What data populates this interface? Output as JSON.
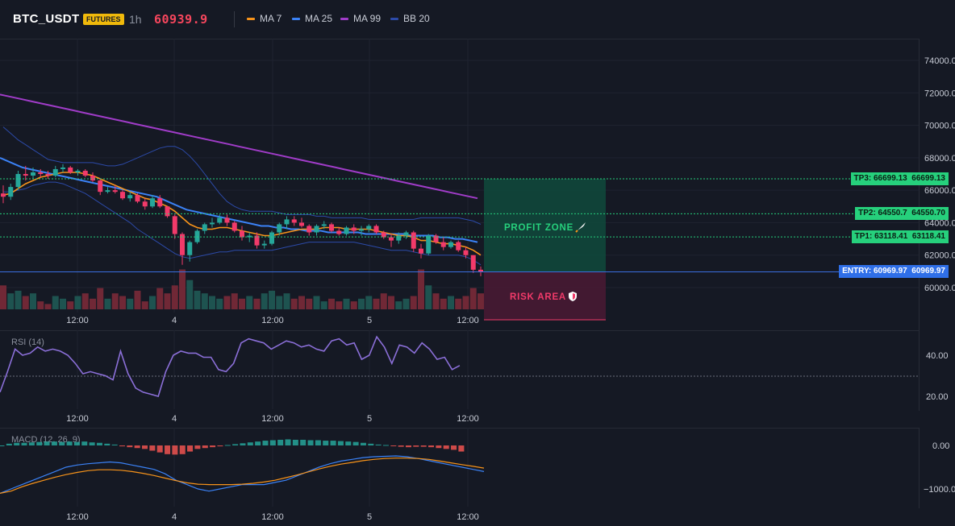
{
  "header": {
    "symbol": "BTC_USDT",
    "badge": "FUTURES",
    "timeframe": "1h",
    "price": "60939.9",
    "indicators": [
      {
        "label": "MA 7",
        "color": "#f7931a"
      },
      {
        "label": "MA 25",
        "color": "#3b82f6"
      },
      {
        "label": "MA 99",
        "color": "#a03cc8"
      },
      {
        "label": "BB 20",
        "color": "#2c4aa8"
      }
    ]
  },
  "price_axis": [
    "74000.00",
    "72000.00",
    "70000.00",
    "68000.00",
    "66000.00",
    "64000.00",
    "62000.00",
    "60000.00"
  ],
  "time_axis": [
    "12:00",
    "4",
    "12:00",
    "5",
    "12:00"
  ],
  "trade": {
    "tp3": {
      "label": "TP3: 66699.13",
      "value": "66699.13",
      "price": 66699.13
    },
    "tp2": {
      "label": "TP2: 64550.7",
      "value": "64550.70",
      "price": 64550.7
    },
    "tp1": {
      "label": "TP1: 63118.41",
      "value": "63118.41",
      "price": 63118.41
    },
    "entry": {
      "label": "ENTRY: 60969.97",
      "value": "60969.97",
      "price": 60969.97
    },
    "profit_zone": "PROFIT ZONE",
    "profit_icon": "rocket-icon",
    "risk_area": "RISK AREA",
    "risk_icon": "shield-icon"
  },
  "rsi": {
    "title": "RSI (14)",
    "axis": [
      "40.00",
      "20.00"
    ]
  },
  "macd": {
    "title": "MACD (12, 26, 9)",
    "axis": [
      "0.00",
      "−1000.00"
    ]
  },
  "colors": {
    "up": "#26a69a",
    "down": "#f23a6a",
    "profit": "#0f4a3c",
    "risk": "#4a1a34"
  },
  "chart_data": {
    "type": "candlestick",
    "price_range": [
      59100,
      75000
    ],
    "candles": [
      [
        65800,
        66300,
        65200,
        65600
      ],
      [
        65600,
        66400,
        65400,
        66200
      ],
      [
        66200,
        67200,
        66000,
        67000
      ],
      [
        67000,
        67500,
        66600,
        66900
      ],
      [
        66900,
        67400,
        66700,
        67100
      ],
      [
        67100,
        67300,
        66800,
        67000
      ],
      [
        67000,
        67200,
        66700,
        66900
      ],
      [
        66900,
        67500,
        66800,
        67300
      ],
      [
        67300,
        67600,
        67100,
        67400
      ],
      [
        67400,
        67500,
        67000,
        67100
      ],
      [
        67100,
        67300,
        66900,
        67200
      ],
      [
        67200,
        67300,
        66800,
        66900
      ],
      [
        66900,
        67100,
        66500,
        66600
      ],
      [
        66600,
        66700,
        65700,
        65900
      ],
      [
        65900,
        66200,
        65800,
        66000
      ],
      [
        66000,
        66300,
        65800,
        65900
      ],
      [
        65900,
        66000,
        65400,
        65500
      ],
      [
        65500,
        65900,
        65300,
        65700
      ],
      [
        65700,
        65800,
        65200,
        65300
      ],
      [
        65300,
        65500,
        64800,
        65000
      ],
      [
        65000,
        65700,
        64900,
        65500
      ],
      [
        65500,
        65700,
        64900,
        65000
      ],
      [
        65000,
        65000,
        64300,
        64400
      ],
      [
        64400,
        64500,
        63000,
        63300
      ],
      [
        63300,
        63400,
        61400,
        62000
      ],
      [
        62000,
        62900,
        61600,
        62800
      ],
      [
        62800,
        63600,
        62700,
        63500
      ],
      [
        63500,
        64000,
        63300,
        63900
      ],
      [
        63900,
        64300,
        63700,
        64000
      ],
      [
        64000,
        64500,
        63900,
        64300
      ],
      [
        64300,
        64500,
        63800,
        64000
      ],
      [
        64000,
        64100,
        63400,
        63500
      ],
      [
        63500,
        63800,
        62900,
        63100
      ],
      [
        63100,
        63400,
        62800,
        63200
      ],
      [
        63200,
        63400,
        62400,
        62600
      ],
      [
        62600,
        62900,
        62400,
        62700
      ],
      [
        62700,
        63500,
        62600,
        63400
      ],
      [
        63400,
        64000,
        63200,
        63900
      ],
      [
        63900,
        64400,
        63600,
        64200
      ],
      [
        64200,
        64400,
        63800,
        64000
      ],
      [
        64000,
        64300,
        63700,
        63800
      ],
      [
        63800,
        63900,
        63200,
        63400
      ],
      [
        63400,
        63900,
        63200,
        63800
      ],
      [
        63800,
        64100,
        63600,
        63900
      ],
      [
        63900,
        64000,
        63400,
        63500
      ],
      [
        63500,
        63700,
        63200,
        63300
      ],
      [
        63300,
        63800,
        63200,
        63700
      ],
      [
        63700,
        63900,
        63300,
        63500
      ],
      [
        63500,
        63800,
        63200,
        63600
      ],
      [
        63600,
        63900,
        63400,
        63800
      ],
      [
        63800,
        63900,
        63300,
        63400
      ],
      [
        63400,
        63500,
        63000,
        63100
      ],
      [
        63100,
        63300,
        62500,
        62900
      ],
      [
        62900,
        63400,
        62700,
        63200
      ],
      [
        63200,
        63500,
        63000,
        63400
      ],
      [
        63400,
        63500,
        62200,
        62400
      ],
      [
        62400,
        62700,
        61800,
        62100
      ],
      [
        62100,
        63300,
        62000,
        63200
      ],
      [
        63200,
        63300,
        62700,
        62800
      ],
      [
        62800,
        63100,
        62300,
        62500
      ],
      [
        62500,
        62900,
        62400,
        62800
      ],
      [
        62800,
        62900,
        62200,
        62300
      ],
      [
        62300,
        62500,
        61800,
        62000
      ],
      [
        62000,
        62000,
        60900,
        61100
      ],
      [
        61100,
        61300,
        60700,
        60950
      ]
    ],
    "volume": [
      9,
      6,
      7,
      5,
      6,
      3,
      2,
      5,
      4,
      3,
      5,
      6,
      4,
      8,
      4,
      6,
      5,
      4,
      7,
      3,
      5,
      8,
      6,
      9,
      15,
      11,
      7,
      6,
      5,
      4,
      5,
      6,
      4,
      5,
      4,
      6,
      7,
      5,
      6,
      4,
      5,
      4,
      5,
      3,
      4,
      3,
      4,
      3,
      4,
      5,
      4,
      6,
      5,
      3,
      4,
      5,
      15,
      9,
      6,
      4,
      5,
      4,
      5,
      8,
      6
    ],
    "ma7": [
      65700,
      65800,
      66100,
      66400,
      66600,
      66800,
      66900,
      67000,
      67100,
      67100,
      67100,
      67000,
      66900,
      66700,
      66500,
      66300,
      66100,
      65900,
      65700,
      65500,
      65400,
      65200,
      65000,
      64700,
      64300,
      63900,
      63700,
      63600,
      63600,
      63700,
      63700,
      63600,
      63500,
      63400,
      63300,
      63200,
      63200,
      63300,
      63400,
      63500,
      63600,
      63600,
      63600,
      63700,
      63700,
      63700,
      63600,
      63600,
      63600,
      63600,
      63500,
      63400,
      63300,
      63200,
      63200,
      63100,
      62900,
      62900,
      62800,
      62700,
      62700,
      62600,
      62500,
      62300,
      62000
    ],
    "ma25": [
      68000,
      67800,
      67600,
      67400,
      67300,
      67200,
      67100,
      67000,
      66900,
      66800,
      66700,
      66600,
      66500,
      66400,
      66300,
      66200,
      66100,
      66000,
      65900,
      65800,
      65700,
      65600,
      65400,
      65200,
      65000,
      64800,
      64700,
      64600,
      64500,
      64400,
      64300,
      64200,
      64100,
      64000,
      63900,
      63800,
      63800,
      63700,
      63700,
      63600,
      63600,
      63500,
      63500,
      63500,
      63400,
      63400,
      63400,
      63400,
      63400,
      63300,
      63300,
      63300,
      63300,
      63300,
      63300,
      63200,
      63200,
      63200,
      63200,
      63100,
      63100,
      63000,
      63000,
      62900,
      62800
    ],
    "ma99": [
      71900,
      71800,
      71700,
      71600,
      71500,
      71400,
      71300,
      71200,
      71100,
      71000,
      70900,
      70800,
      70700,
      70600,
      70500,
      70400,
      70300,
      70200,
      70100,
      70000,
      69900,
      69800,
      69700,
      69600,
      69500,
      69400,
      69300,
      69200,
      69100,
      69000,
      68900,
      68800,
      68700,
      68600,
      68500,
      68400,
      68300,
      68200,
      68100,
      68000,
      67900,
      67800,
      67700,
      67600,
      67500,
      67400,
      67300,
      67200,
      67100,
      67000,
      66900,
      66800,
      66700,
      66600,
      66500,
      66400,
      66300,
      66200,
      66100,
      66000,
      65900,
      65800,
      65700,
      65600,
      65500
    ],
    "bb_upper": [
      69900,
      69500,
      69100,
      68800,
      68500,
      68200,
      67900,
      67800,
      67700,
      67700,
      67700,
      67700,
      67700,
      67600,
      67500,
      67500,
      67600,
      67800,
      68000,
      68200,
      68400,
      68600,
      68700,
      68700,
      68500,
      68100,
      67600,
      67000,
      66400,
      65800,
      65300,
      65000,
      64800,
      64700,
      64700,
      64700,
      64700,
      64600,
      64500,
      64500,
      64500,
      64500,
      64400,
      64400,
      64300,
      64300,
      64300,
      64300,
      64300,
      64200,
      64200,
      64200,
      64200,
      64200,
      64200,
      64200,
      64300,
      64300,
      64300,
      64300,
      64300,
      64300,
      64200,
      64100,
      63900
    ],
    "bb_lower": [
      65900,
      65900,
      66000,
      66100,
      66300,
      66400,
      66500,
      66500,
      66400,
      66200,
      66000,
      65800,
      65500,
      65200,
      64900,
      64600,
      64300,
      64000,
      63600,
      63300,
      63000,
      62700,
      62400,
      62100,
      61900,
      61800,
      61900,
      62000,
      62100,
      62200,
      62200,
      62300,
      62300,
      62300,
      62300,
      62300,
      62300,
      62400,
      62500,
      62600,
      62700,
      62800,
      62800,
      62800,
      62800,
      62800,
      62800,
      62800,
      62700,
      62600,
      62500,
      62400,
      62300,
      62300,
      62300,
      62200,
      62100,
      62000,
      62000,
      62000,
      62000,
      62000,
      61900,
      61700,
      61400
    ],
    "rsi": [
      22,
      32,
      43,
      40,
      41,
      44,
      42,
      43,
      42,
      40,
      36,
      31,
      32,
      31,
      30,
      28,
      42,
      31,
      24,
      22,
      21,
      20,
      32,
      40,
      42,
      41,
      41,
      39,
      39,
      33,
      32,
      36,
      46,
      48,
      47,
      46,
      43,
      45,
      47,
      46,
      44,
      45,
      43,
      42,
      47,
      48,
      45,
      46,
      38,
      40,
      49,
      44,
      36,
      45,
      44,
      41,
      46,
      43,
      38,
      39,
      33,
      35
    ],
    "macd_hist": [
      0,
      40,
      60,
      60,
      70,
      80,
      90,
      90,
      80,
      90,
      80,
      90,
      70,
      60,
      40,
      20,
      -20,
      -40,
      -60,
      -80,
      -120,
      -160,
      -200,
      -210,
      -200,
      -140,
      -80,
      -60,
      -40,
      -20,
      10,
      30,
      50,
      70,
      90,
      110,
      120,
      130,
      140,
      130,
      130,
      120,
      120,
      110,
      110,
      100,
      90,
      80,
      60,
      40,
      20,
      10,
      -10,
      -30,
      -40,
      -30,
      -30,
      -40,
      -60,
      -80,
      -100,
      -140
    ],
    "macd_line": [
      -1100,
      -1000,
      -900,
      -800,
      -700,
      -600,
      -500,
      -450,
      -420,
      -400,
      -380,
      -400,
      -450,
      -500,
      -550,
      -650,
      -800,
      -900,
      -1000,
      -1050,
      -1000,
      -950,
      -900,
      -900,
      -900,
      -850,
      -800,
      -700,
      -600,
      -500,
      -420,
      -360,
      -320,
      -280,
      -260,
      -250,
      -240,
      -260,
      -300,
      -350,
      -400,
      -450,
      -500,
      -550,
      -600
    ],
    "macd_signal": [
      -1100,
      -1050,
      -950,
      -870,
      -800,
      -730,
      -670,
      -620,
      -580,
      -560,
      -560,
      -570,
      -600,
      -640,
      -690,
      -750,
      -810,
      -860,
      -890,
      -900,
      -900,
      -900,
      -890,
      -870,
      -840,
      -800,
      -740,
      -680,
      -610,
      -540,
      -480,
      -430,
      -390,
      -350,
      -320,
      -300,
      -290,
      -290,
      -300,
      -320,
      -360,
      -400,
      -440,
      -480,
      -520
    ]
  }
}
